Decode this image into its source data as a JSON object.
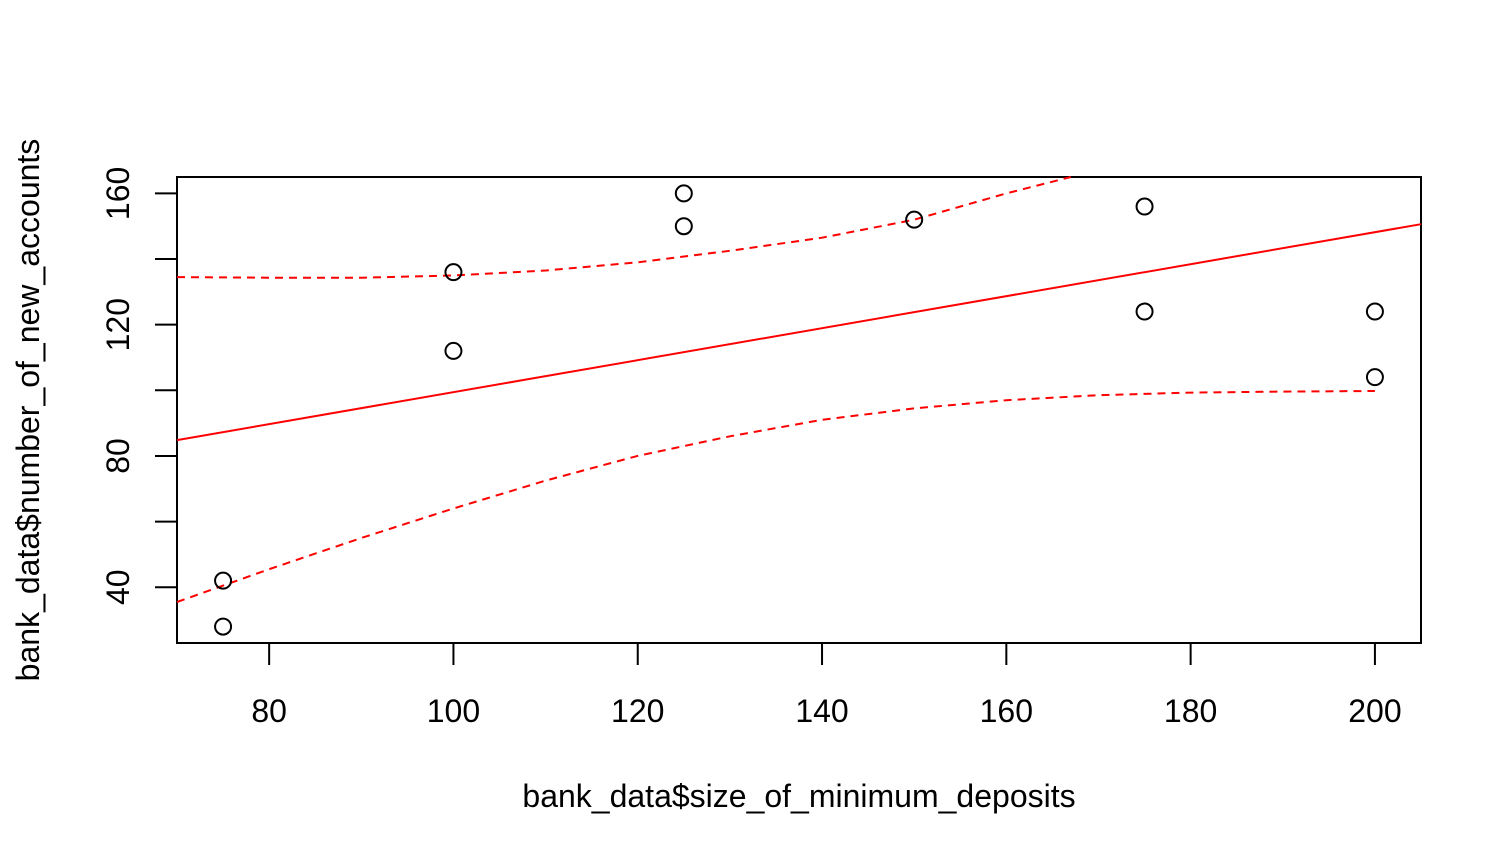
{
  "chart_data": {
    "type": "scatter",
    "xlabel": "bank_data$size_of_minimum_deposits",
    "ylabel": "bank_data$number_of_new_accounts",
    "xlim": [
      70,
      205
    ],
    "ylim": [
      23,
      165
    ],
    "x_ticks": [
      80,
      100,
      120,
      140,
      160,
      180,
      200
    ],
    "y_ticks": [
      40,
      80,
      120,
      160
    ],
    "y_minor_ticks": [
      60,
      100,
      140
    ],
    "grid": false,
    "points": [
      {
        "x": 75,
        "y": 28
      },
      {
        "x": 75,
        "y": 42
      },
      {
        "x": 100,
        "y": 112
      },
      {
        "x": 100,
        "y": 136
      },
      {
        "x": 125,
        "y": 150
      },
      {
        "x": 125,
        "y": 160
      },
      {
        "x": 150,
        "y": 152
      },
      {
        "x": 175,
        "y": 124
      },
      {
        "x": 175,
        "y": 156
      },
      {
        "x": 200,
        "y": 104
      },
      {
        "x": 200,
        "y": 124
      }
    ],
    "fit_line": {
      "intercept": 50.7,
      "slope": 0.4874,
      "color": "#ff0000"
    },
    "upper_band": {
      "color": "#ff0000",
      "points": [
        [
          70,
          134.5
        ],
        [
          80,
          134.3
        ],
        [
          90,
          134.3
        ],
        [
          100,
          135.0
        ],
        [
          110,
          136.5
        ],
        [
          120,
          139.0
        ],
        [
          130,
          142.5
        ],
        [
          140,
          146.5
        ],
        [
          150,
          152.0
        ],
        [
          160,
          160.0
        ],
        [
          167,
          165.0
        ]
      ]
    },
    "lower_band": {
      "color": "#ff0000",
      "points": [
        [
          70,
          35.5
        ],
        [
          75,
          40.5
        ],
        [
          80,
          45.5
        ],
        [
          90,
          55.0
        ],
        [
          100,
          64.0
        ],
        [
          110,
          72.5
        ],
        [
          120,
          80.0
        ],
        [
          130,
          86.0
        ],
        [
          140,
          91.0
        ],
        [
          150,
          94.5
        ],
        [
          160,
          97.0
        ],
        [
          170,
          98.5
        ],
        [
          180,
          99.3
        ],
        [
          190,
          99.6
        ],
        [
          200,
          99.8
        ]
      ]
    },
    "point_color": "#000000"
  }
}
